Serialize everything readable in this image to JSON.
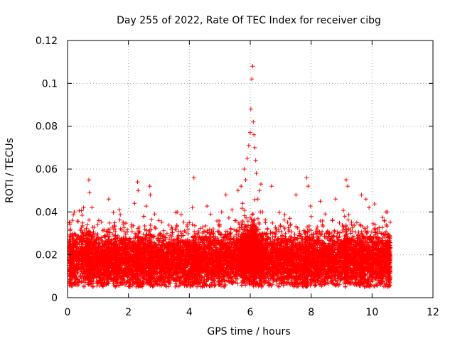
{
  "chart_data": {
    "type": "scatter",
    "title": "Day 255 of 2022, Rate Of TEC Index for receiver cibg",
    "xlabel": "GPS time / hours",
    "ylabel": "ROTI / TECUs",
    "xlim": [
      0,
      12
    ],
    "ylim": [
      0,
      0.12
    ],
    "xticks": [
      0,
      2,
      4,
      6,
      8,
      10,
      12
    ],
    "yticks": [
      0,
      0.02,
      0.04,
      0.06,
      0.08,
      0.1,
      0.12
    ],
    "xtick_labels": [
      "0",
      "2",
      "4",
      "6",
      "8",
      "10",
      "12"
    ],
    "ytick_labels": [
      "0",
      "0.02",
      "0.04",
      "0.06",
      "0.08",
      "0.1",
      "0.12"
    ],
    "grid": true,
    "marker": "+",
    "color": "#ff0000",
    "series": [
      {
        "name": "ROTI",
        "x": [
          0.05,
          0.1,
          0.2,
          0.3,
          0.45,
          0.55,
          0.65,
          0.7,
          0.72,
          0.8,
          0.9,
          1.0,
          1.1,
          1.2,
          1.3,
          1.35,
          1.45,
          1.55,
          1.6,
          1.7,
          1.8,
          1.9,
          2.0,
          2.1,
          2.2,
          2.3,
          2.32,
          2.4,
          2.5,
          2.6,
          2.7,
          2.72,
          2.8,
          2.9,
          3.0,
          3.1,
          3.2,
          3.3,
          3.4,
          3.5,
          3.6,
          3.7,
          3.8,
          3.9,
          4.0,
          4.1,
          4.15,
          4.2,
          4.3,
          4.4,
          4.5,
          4.6,
          4.7,
          4.8,
          4.9,
          5.0,
          5.1,
          5.2,
          5.3,
          5.4,
          5.5,
          5.6,
          5.7,
          5.75,
          5.8,
          5.85,
          5.9,
          5.95,
          6.0,
          6.02,
          6.05,
          6.08,
          6.1,
          6.12,
          6.15,
          6.18,
          6.2,
          6.25,
          6.3,
          6.35,
          6.4,
          6.5,
          6.6,
          6.7,
          6.8,
          6.9,
          7.0,
          7.1,
          7.2,
          7.3,
          7.4,
          7.5,
          7.6,
          7.7,
          7.8,
          7.85,
          7.9,
          8.0,
          8.1,
          8.2,
          8.3,
          8.4,
          8.5,
          8.6,
          8.7,
          8.8,
          8.9,
          9.0,
          9.1,
          9.15,
          9.2,
          9.3,
          9.4,
          9.5,
          9.6,
          9.65,
          9.7,
          9.8,
          9.9,
          10.0,
          10.1,
          10.2,
          10.3,
          10.4,
          10.5,
          10.55
        ],
        "y": [
          0.018,
          0.032,
          0.022,
          0.015,
          0.026,
          0.02,
          0.034,
          0.055,
          0.049,
          0.042,
          0.019,
          0.028,
          0.016,
          0.024,
          0.031,
          0.046,
          0.02,
          0.035,
          0.018,
          0.041,
          0.022,
          0.027,
          0.017,
          0.033,
          0.044,
          0.054,
          0.05,
          0.021,
          0.038,
          0.029,
          0.052,
          0.048,
          0.019,
          0.025,
          0.036,
          0.016,
          0.028,
          0.021,
          0.032,
          0.024,
          0.04,
          0.018,
          0.029,
          0.022,
          0.035,
          0.042,
          0.056,
          0.02,
          0.027,
          0.017,
          0.031,
          0.023,
          0.039,
          0.025,
          0.019,
          0.034,
          0.028,
          0.048,
          0.021,
          0.041,
          0.036,
          0.05,
          0.052,
          0.044,
          0.06,
          0.055,
          0.065,
          0.071,
          0.077,
          0.088,
          0.102,
          0.108,
          0.082,
          0.076,
          0.07,
          0.064,
          0.058,
          0.046,
          0.05,
          0.053,
          0.04,
          0.035,
          0.028,
          0.052,
          0.03,
          0.022,
          0.026,
          0.033,
          0.02,
          0.037,
          0.024,
          0.048,
          0.029,
          0.019,
          0.031,
          0.056,
          0.052,
          0.027,
          0.022,
          0.033,
          0.045,
          0.025,
          0.03,
          0.019,
          0.036,
          0.046,
          0.028,
          0.024,
          0.038,
          0.055,
          0.052,
          0.03,
          0.021,
          0.035,
          0.027,
          0.048,
          0.033,
          0.046,
          0.042,
          0.022,
          0.034,
          0.028,
          0.03,
          0.036,
          0.04,
          0.021
        ],
        "baseline": [
          0.018,
          0.017,
          0.016,
          0.017,
          0.018,
          0.017,
          0.018,
          0.018,
          0.017,
          0.017,
          0.017,
          0.016,
          0.017,
          0.017,
          0.018,
          0.017,
          0.017,
          0.017,
          0.016,
          0.017,
          0.017,
          0.018,
          0.016,
          0.017,
          0.017,
          0.017,
          0.017,
          0.016,
          0.017,
          0.017,
          0.016,
          0.016,
          0.017,
          0.016,
          0.017,
          0.017,
          0.016,
          0.016,
          0.017,
          0.017,
          0.017,
          0.017,
          0.016,
          0.016,
          0.017,
          0.017,
          0.017,
          0.017,
          0.017,
          0.017,
          0.017,
          0.018,
          0.018,
          0.018,
          0.018,
          0.018,
          0.018,
          0.019,
          0.018,
          0.018,
          0.018,
          0.019,
          0.019,
          0.018,
          0.019,
          0.019,
          0.02,
          0.02,
          0.02,
          0.02,
          0.02,
          0.02,
          0.02,
          0.02,
          0.019,
          0.019,
          0.019,
          0.019,
          0.018,
          0.018,
          0.018,
          0.018,
          0.017,
          0.017,
          0.017,
          0.017,
          0.017,
          0.017,
          0.017,
          0.017,
          0.017,
          0.016,
          0.017,
          0.016,
          0.017,
          0.017,
          0.017,
          0.017,
          0.018,
          0.018,
          0.018,
          0.017,
          0.018,
          0.018,
          0.017,
          0.017,
          0.017,
          0.018,
          0.017,
          0.018,
          0.017,
          0.017,
          0.017,
          0.018,
          0.017,
          0.017,
          0.017,
          0.017,
          0.017,
          0.018,
          0.018,
          0.017,
          0.017,
          0.018,
          0.018,
          0.017
        ]
      }
    ]
  }
}
